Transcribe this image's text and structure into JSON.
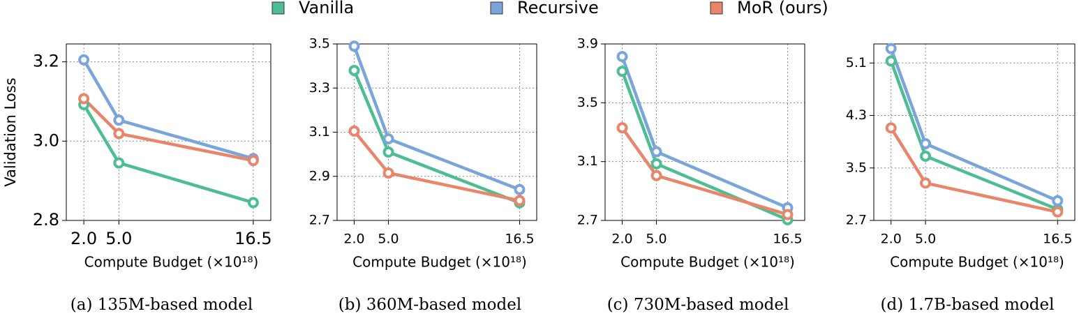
{
  "chart_data": [
    {
      "type": "line",
      "caption": "(a) 135M-based model",
      "ylabel": "Validation Loss",
      "xlabel": "Compute Budget (×10¹⁸)",
      "x": [
        2,
        5,
        16.5
      ],
      "xlim": [
        0.5,
        18
      ],
      "xticks": [
        {
          "value": 2,
          "label": "2.0"
        },
        {
          "value": 5,
          "label": "5.0"
        },
        {
          "value": 16.5,
          "label": "16.5"
        }
      ],
      "ylim": [
        2.8,
        3.245
      ],
      "yticks": [
        2.8,
        {
          "value": 3.0,
          "label": "3.0"
        },
        3.2
      ],
      "grid": true,
      "series": [
        {
          "name": "Vanilla",
          "color": "#4dbd93",
          "values": [
            3.092,
            2.945,
            2.845
          ]
        },
        {
          "name": "Recursive",
          "color": "#79a5db",
          "values": [
            3.205,
            3.053,
            2.956
          ]
        },
        {
          "name": "MoR (ours)",
          "color": "#e8856a",
          "values": [
            3.107,
            3.019,
            2.951
          ]
        }
      ]
    },
    {
      "type": "line",
      "caption": "(b) 360M-based model",
      "xlabel": "Compute Budget (×10¹⁸)",
      "x": [
        2,
        5,
        16.5
      ],
      "xlim": [
        0.5,
        18
      ],
      "xticks": [
        {
          "value": 2,
          "label": "2.0"
        },
        {
          "value": 5,
          "label": "5.0"
        },
        {
          "value": 16.5,
          "label": "16.5"
        }
      ],
      "ylim": [
        2.7,
        3.5
      ],
      "yticks": [
        2.7,
        2.9,
        3.1,
        3.3,
        3.5
      ],
      "grid": true,
      "series": [
        {
          "color": "#4dbd93",
          "values": [
            3.38,
            3.01,
            2.78
          ]
        },
        {
          "color": "#79a5db",
          "values": [
            3.49,
            3.07,
            2.84
          ]
        },
        {
          "color": "#e8856a",
          "values": [
            3.105,
            2.915,
            2.79
          ]
        }
      ]
    },
    {
      "type": "line",
      "caption": "(c) 730M-based model",
      "xlabel": "Compute Budget (×10¹⁸)",
      "x": [
        2,
        5,
        16.5
      ],
      "xlim": [
        0.5,
        18
      ],
      "xticks": [
        {
          "value": 2,
          "label": "2.0"
        },
        {
          "value": 5,
          "label": "5.0"
        },
        {
          "value": 16.5,
          "label": "16.5"
        }
      ],
      "ylim": [
        2.7,
        3.9
      ],
      "yticks": [
        2.7,
        3.1,
        3.5,
        3.9
      ],
      "grid": true,
      "series": [
        {
          "color": "#4dbd93",
          "values": [
            3.714,
            3.085,
            2.705
          ]
        },
        {
          "color": "#79a5db",
          "values": [
            3.814,
            3.167,
            2.786
          ]
        },
        {
          "color": "#e8856a",
          "values": [
            3.33,
            3.005,
            2.74
          ]
        }
      ]
    },
    {
      "type": "line",
      "caption": "(d) 1.7B-based model",
      "xlabel": "Compute Budget (×10¹⁸)",
      "x": [
        2,
        5,
        16.5
      ],
      "xlim": [
        0.5,
        18
      ],
      "xticks": [
        {
          "value": 2,
          "label": "2.0"
        },
        {
          "value": 5,
          "label": "5.0"
        },
        {
          "value": 16.5,
          "label": "16.5"
        }
      ],
      "ylim": [
        2.7,
        5.39
      ],
      "yticks": [
        2.7,
        3.5,
        4.3,
        5.1
      ],
      "grid": true,
      "series": [
        {
          "color": "#4dbd93",
          "values": [
            5.13,
            3.68,
            2.87
          ]
        },
        {
          "color": "#79a5db",
          "values": [
            5.32,
            3.87,
            3.0
          ]
        },
        {
          "color": "#e8856a",
          "values": [
            4.11,
            3.27,
            2.83
          ]
        }
      ]
    }
  ]
}
